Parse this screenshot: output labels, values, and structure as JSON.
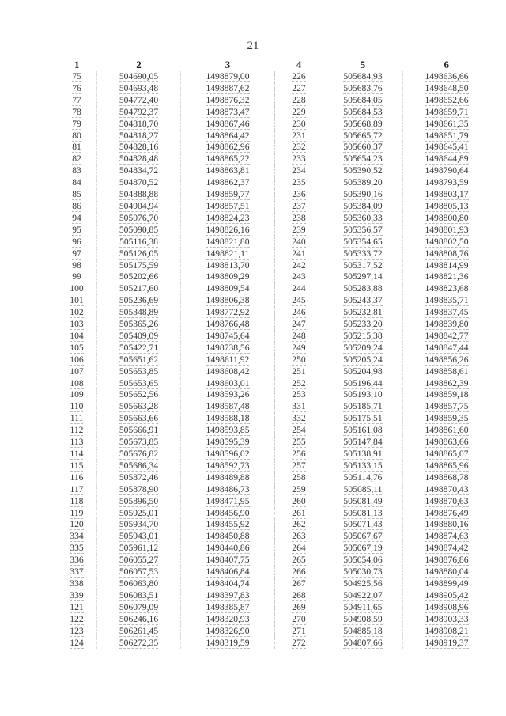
{
  "page_number": "21",
  "headers": [
    "1",
    "2",
    "3",
    "4",
    "5",
    "6"
  ],
  "left_rows": [
    [
      "75",
      "504690,05",
      "1498879,00"
    ],
    [
      "76",
      "504693,48",
      "1498887,62"
    ],
    [
      "77",
      "504772,40",
      "1498876,32"
    ],
    [
      "78",
      "504792,37",
      "1498873,47"
    ],
    [
      "79",
      "504818,70",
      "1498867,46"
    ],
    [
      "80",
      "504818,27",
      "1498864,42"
    ],
    [
      "81",
      "504828,16",
      "1498862,96"
    ],
    [
      "82",
      "504828,48",
      "1498865,22"
    ],
    [
      "83",
      "504834,72",
      "1498863,81"
    ],
    [
      "84",
      "504870,52",
      "1498862,37"
    ],
    [
      "85",
      "504888,88",
      "1498859,77"
    ],
    [
      "86",
      "504904,94",
      "1498857,51"
    ],
    [
      "94",
      "505076,70",
      "1498824,23"
    ],
    [
      "95",
      "505090,85",
      "1498826,16"
    ],
    [
      "96",
      "505116,38",
      "1498821,80"
    ],
    [
      "97",
      "505126,05",
      "1498821,11"
    ],
    [
      "98",
      "505175,59",
      "1498813,70"
    ],
    [
      "99",
      "505202,66",
      "1498809,29"
    ],
    [
      "100",
      "505217,60",
      "1498809,54"
    ],
    [
      "101",
      "505236,69",
      "1498806,38"
    ],
    [
      "102",
      "505348,89",
      "1498772,92"
    ],
    [
      "103",
      "505365,26",
      "1498766,48"
    ],
    [
      "104",
      "505409,09",
      "1498745,64"
    ],
    [
      "105",
      "505422,71",
      "1498738,56"
    ],
    [
      "106",
      "505651,62",
      "1498611,92"
    ],
    [
      "107",
      "505653,85",
      "1498608,42"
    ],
    [
      "108",
      "505653,65",
      "1498603,01"
    ],
    [
      "109",
      "505652,56",
      "1498593,26"
    ],
    [
      "110",
      "505663,28",
      "1498587,48"
    ],
    [
      "111",
      "505663,66",
      "1498588,18"
    ],
    [
      "112",
      "505666,91",
      "1498593,85"
    ],
    [
      "113",
      "505673,85",
      "1498595,39"
    ],
    [
      "114",
      "505676,82",
      "1498596,02"
    ],
    [
      "115",
      "505686,34",
      "1498592,73"
    ],
    [
      "116",
      "505872,46",
      "1498489,88"
    ],
    [
      "117",
      "505878,90",
      "1498486,73"
    ],
    [
      "118",
      "505896,50",
      "1498471,95"
    ],
    [
      "119",
      "505925,01",
      "1498456,90"
    ],
    [
      "120",
      "505934,70",
      "1498455,92"
    ],
    [
      "334",
      "505943,01",
      "1498450,88"
    ],
    [
      "335",
      "505961,12",
      "1498440,86"
    ],
    [
      "336",
      "506055,27",
      "1498407,75"
    ],
    [
      "337",
      "506057,53",
      "1498406,84"
    ],
    [
      "338",
      "506063,80",
      "1498404,74"
    ],
    [
      "339",
      "506083,51",
      "1498397,83"
    ],
    [
      "121",
      "506079,09",
      "1498385,87"
    ],
    [
      "122",
      "506246,16",
      "1498320,93"
    ],
    [
      "123",
      "506261,45",
      "1498326,90"
    ],
    [
      "124",
      "506272,35",
      "1498319,59"
    ]
  ],
  "right_rows": [
    [
      "226",
      "505684,93",
      "1498636,66"
    ],
    [
      "227",
      "505683,76",
      "1498648,50"
    ],
    [
      "228",
      "505684,05",
      "1498652,66"
    ],
    [
      "229",
      "505684,53",
      "1498659,71"
    ],
    [
      "230",
      "505668,89",
      "1498661,35"
    ],
    [
      "231",
      "505665,72",
      "1498651,79"
    ],
    [
      "232",
      "505660,37",
      "1498645,41"
    ],
    [
      "233",
      "505654,23",
      "1498644,89"
    ],
    [
      "234",
      "505390,52",
      "1498790,64"
    ],
    [
      "235",
      "505389,20",
      "1498793,59"
    ],
    [
      "236",
      "505390,16",
      "1498803,17"
    ],
    [
      "237",
      "505384,09",
      "1498805,13"
    ],
    [
      "238",
      "505360,33",
      "1498800,80"
    ],
    [
      "239",
      "505356,57",
      "1498801,93"
    ],
    [
      "240",
      "505354,65",
      "1498802,50"
    ],
    [
      "241",
      "505333,72",
      "1498808,76"
    ],
    [
      "242",
      "505317,52",
      "1498814,99"
    ],
    [
      "243",
      "505297,14",
      "1498821,36"
    ],
    [
      "244",
      "505283,88",
      "1498823,68"
    ],
    [
      "245",
      "505243,37",
      "1498835,71"
    ],
    [
      "246",
      "505232,81",
      "1498837,45"
    ],
    [
      "247",
      "505233,20",
      "1498839,80"
    ],
    [
      "248",
      "505215,38",
      "1498842,77"
    ],
    [
      "249",
      "505209,24",
      "1498847,44"
    ],
    [
      "250",
      "505205,24",
      "1498856,26"
    ],
    [
      "251",
      "505204,98",
      "1498858,61"
    ],
    [
      "252",
      "505196,44",
      "1498862,39"
    ],
    [
      "253",
      "505193,10",
      "1498859,18"
    ],
    [
      "331",
      "505185,71",
      "1498857,75"
    ],
    [
      "332",
      "505175,51",
      "1498859,35"
    ],
    [
      "254",
      "505161,08",
      "1498861,60"
    ],
    [
      "255",
      "505147,84",
      "1498863,66"
    ],
    [
      "256",
      "505138,91",
      "1498865,07"
    ],
    [
      "257",
      "505133,15",
      "1498865,96"
    ],
    [
      "258",
      "505114,76",
      "1498868,78"
    ],
    [
      "259",
      "505085,11",
      "1498870,43"
    ],
    [
      "260",
      "505081,49",
      "1498870,63"
    ],
    [
      "261",
      "505081,13",
      "1498876,49"
    ],
    [
      "262",
      "505071,43",
      "1498880,16"
    ],
    [
      "263",
      "505067,67",
      "1498874,63"
    ],
    [
      "264",
      "505067,19",
      "1498874,42"
    ],
    [
      "265",
      "505054,06",
      "1498876,86"
    ],
    [
      "266",
      "505030,73",
      "1498880,04"
    ],
    [
      "267",
      "504925,56",
      "1498899,49"
    ],
    [
      "268",
      "504922,07",
      "1498905,42"
    ],
    [
      "269",
      "504911,65",
      "1498908,96"
    ],
    [
      "270",
      "504908,59",
      "1498903,33"
    ],
    [
      "271",
      "504885,18",
      "1498908,21"
    ],
    [
      "272",
      "504807,66",
      "1498919,37"
    ]
  ]
}
